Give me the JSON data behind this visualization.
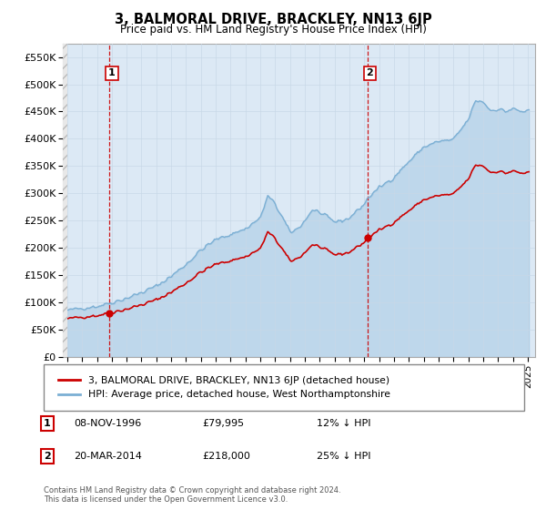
{
  "title": "3, BALMORAL DRIVE, BRACKLEY, NN13 6JP",
  "subtitle": "Price paid vs. HM Land Registry's House Price Index (HPI)",
  "hpi_label": "HPI: Average price, detached house, West Northamptonshire",
  "property_label": "3, BALMORAL DRIVE, BRACKLEY, NN13 6JP (detached house)",
  "footer": "Contains HM Land Registry data © Crown copyright and database right 2024.\nThis data is licensed under the Open Government Licence v3.0.",
  "sale1_date": "08-NOV-1996",
  "sale1_price": 79995,
  "sale1_label": "£79,995",
  "sale1_pct": "12% ↓ HPI",
  "sale2_date": "20-MAR-2014",
  "sale2_price": 218000,
  "sale2_label": "£218,000",
  "sale2_pct": "25% ↓ HPI",
  "red_line_color": "#cc0000",
  "blue_line_color": "#7bafd4",
  "blue_fill_color": "#dce9f5",
  "marker_color": "#cc0000",
  "vline_color": "#cc0000",
  "grid_color": "#c8d8e8",
  "bg_color": "#dce9f5",
  "ylim": [
    0,
    575000
  ],
  "yticks": [
    0,
    50000,
    100000,
    150000,
    200000,
    250000,
    300000,
    350000,
    400000,
    450000,
    500000,
    550000
  ],
  "ylabel_fmt": [
    "£0",
    "£50K",
    "£100K",
    "£150K",
    "£200K",
    "£250K",
    "£300K",
    "£350K",
    "£400K",
    "£450K",
    "£500K",
    "£550K"
  ],
  "sale1_x": 1996.85,
  "sale2_x": 2014.22,
  "xtick_years": [
    1994,
    1995,
    1996,
    1997,
    1998,
    1999,
    2000,
    2001,
    2002,
    2003,
    2004,
    2005,
    2006,
    2007,
    2008,
    2009,
    2010,
    2011,
    2012,
    2013,
    2014,
    2015,
    2016,
    2017,
    2018,
    2019,
    2020,
    2021,
    2022,
    2023,
    2024,
    2025
  ],
  "xlim_left": 1993.7,
  "xlim_right": 2025.5
}
